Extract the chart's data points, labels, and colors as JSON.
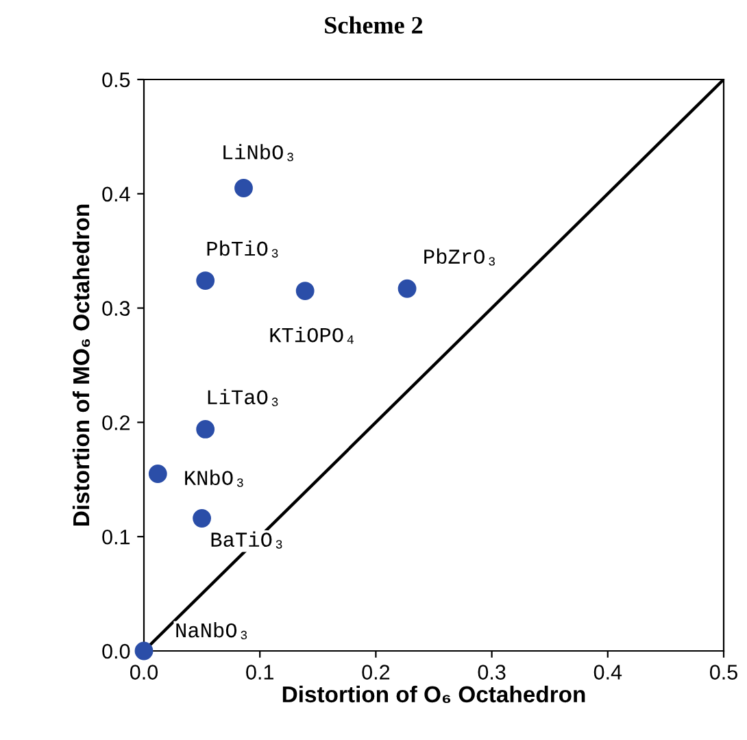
{
  "chart_data": {
    "type": "scatter",
    "title": "Scheme 2",
    "xlabel": "Distortion of O₆ Octahedron",
    "ylabel": "Distortion of MO₆ Octahedron",
    "series": [
      {
        "color": "#2b4ea8",
        "marker": "circle",
        "x": [
          0.086,
          0.053,
          0.139,
          0.227,
          0.053,
          0.012,
          0.05,
          0.0
        ],
        "values": [
          0.405,
          0.324,
          0.315,
          0.317,
          0.194,
          0.155,
          0.116,
          0.0
        ]
      },
      {
        "type": "line",
        "color": "#000000",
        "marker": "none",
        "line_style": "solid",
        "x": [
          0,
          0.5
        ],
        "values": [
          0,
          0.5
        ]
      }
    ],
    "annotations": [
      {
        "text": "LiNbO₃",
        "x": 0.086,
        "y": 0.405
      },
      {
        "text": "PbTiO₃",
        "x": 0.053,
        "y": 0.324
      },
      {
        "text": "KTiOPO₄",
        "x": 0.139,
        "y": 0.315
      },
      {
        "text": "PbZrO₃",
        "x": 0.227,
        "y": 0.317
      },
      {
        "text": "LiTaO₃",
        "x": 0.053,
        "y": 0.194
      },
      {
        "text": "KNbO₃",
        "x": 0.012,
        "y": 0.155
      },
      {
        "text": "BaTiO₃",
        "x": 0.05,
        "y": 0.116
      },
      {
        "text": "NaNbO₃",
        "x": 0.0,
        "y": 0.0
      }
    ],
    "xlim": [
      0,
      0.5
    ],
    "ylim": [
      0,
      0.5
    ],
    "xticks": [
      {
        "value": 0,
        "label": "0.0"
      },
      0.1,
      0.2,
      0.3,
      0.4,
      0.5
    ],
    "yticks": [
      {
        "value": 0,
        "label": "0.0"
      },
      0.1,
      0.2,
      0.3,
      0.4,
      0.5
    ],
    "grid": false,
    "legend": false
  }
}
